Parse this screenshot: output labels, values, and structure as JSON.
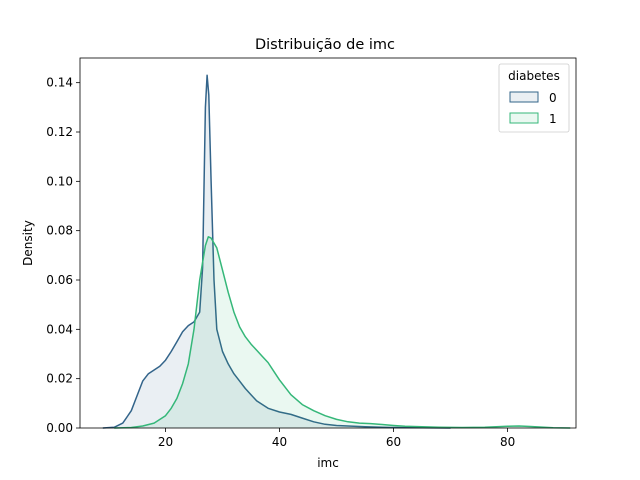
{
  "chart_data": {
    "type": "area",
    "title": "Distribuição de imc",
    "xlabel": "imc",
    "ylabel": "Density",
    "xlim": [
      5,
      92
    ],
    "ylim": [
      0,
      0.15
    ],
    "xticks": [
      20,
      40,
      60,
      80
    ],
    "yticks": [
      0.0,
      0.02,
      0.04,
      0.06,
      0.08,
      0.1,
      0.12,
      0.14
    ],
    "ytick_labels": [
      "0.00",
      "0.02",
      "0.04",
      "0.06",
      "0.08",
      "0.10",
      "0.12",
      "0.14"
    ],
    "grid": false,
    "legend": {
      "title": "diabetes",
      "placement": "top-right"
    },
    "series": [
      {
        "name": "0",
        "color": "#33648a",
        "points": [
          [
            9,
            0
          ],
          [
            11,
            0.0003
          ],
          [
            12.5,
            0.002
          ],
          [
            14,
            0.007
          ],
          [
            15,
            0.013
          ],
          [
            16,
            0.019
          ],
          [
            17,
            0.022
          ],
          [
            18,
            0.0235
          ],
          [
            19,
            0.025
          ],
          [
            20,
            0.0275
          ],
          [
            21,
            0.031
          ],
          [
            22,
            0.035
          ],
          [
            23,
            0.039
          ],
          [
            24,
            0.0415
          ],
          [
            25,
            0.043
          ],
          [
            26,
            0.047
          ],
          [
            26.5,
            0.065
          ],
          [
            27,
            0.13
          ],
          [
            27.3,
            0.143
          ],
          [
            27.6,
            0.135
          ],
          [
            28,
            0.1
          ],
          [
            28.5,
            0.06
          ],
          [
            29,
            0.04
          ],
          [
            30,
            0.031
          ],
          [
            31,
            0.026
          ],
          [
            32,
            0.022
          ],
          [
            33,
            0.019
          ],
          [
            34,
            0.016
          ],
          [
            35,
            0.0135
          ],
          [
            36,
            0.011
          ],
          [
            38,
            0.008
          ],
          [
            40,
            0.0065
          ],
          [
            42,
            0.0055
          ],
          [
            44,
            0.004
          ],
          [
            46,
            0.0025
          ],
          [
            48,
            0.0015
          ],
          [
            50,
            0.001
          ],
          [
            55,
            0.0005
          ],
          [
            60,
            0.0002
          ],
          [
            70,
            0
          ]
        ]
      },
      {
        "name": "1",
        "color": "#35b779",
        "points": [
          [
            11,
            0
          ],
          [
            14,
            0.0002
          ],
          [
            16,
            0.0008
          ],
          [
            18,
            0.002
          ],
          [
            20,
            0.005
          ],
          [
            21,
            0.008
          ],
          [
            22,
            0.012
          ],
          [
            23,
            0.018
          ],
          [
            24,
            0.026
          ],
          [
            25,
            0.04
          ],
          [
            26,
            0.06
          ],
          [
            27,
            0.074
          ],
          [
            27.5,
            0.0775
          ],
          [
            28,
            0.077
          ],
          [
            29,
            0.073
          ],
          [
            30,
            0.064
          ],
          [
            31,
            0.055
          ],
          [
            32,
            0.047
          ],
          [
            33,
            0.041
          ],
          [
            34,
            0.037
          ],
          [
            35,
            0.034
          ],
          [
            36,
            0.0315
          ],
          [
            37,
            0.029
          ],
          [
            38,
            0.0265
          ],
          [
            39,
            0.023
          ],
          [
            40,
            0.0195
          ],
          [
            42,
            0.0135
          ],
          [
            44,
            0.0095
          ],
          [
            46,
            0.007
          ],
          [
            48,
            0.005
          ],
          [
            50,
            0.0035
          ],
          [
            52,
            0.0025
          ],
          [
            54,
            0.002
          ],
          [
            56,
            0.0018
          ],
          [
            58,
            0.0014
          ],
          [
            60,
            0.001
          ],
          [
            62,
            0.0007
          ],
          [
            65,
            0.0005
          ],
          [
            68,
            0.0003
          ],
          [
            72,
            0.0002
          ],
          [
            76,
            0.0003
          ],
          [
            80,
            0.0007
          ],
          [
            82,
            0.0008
          ],
          [
            84,
            0.0006
          ],
          [
            88,
            0.0001
          ],
          [
            91,
            0
          ]
        ]
      }
    ]
  }
}
